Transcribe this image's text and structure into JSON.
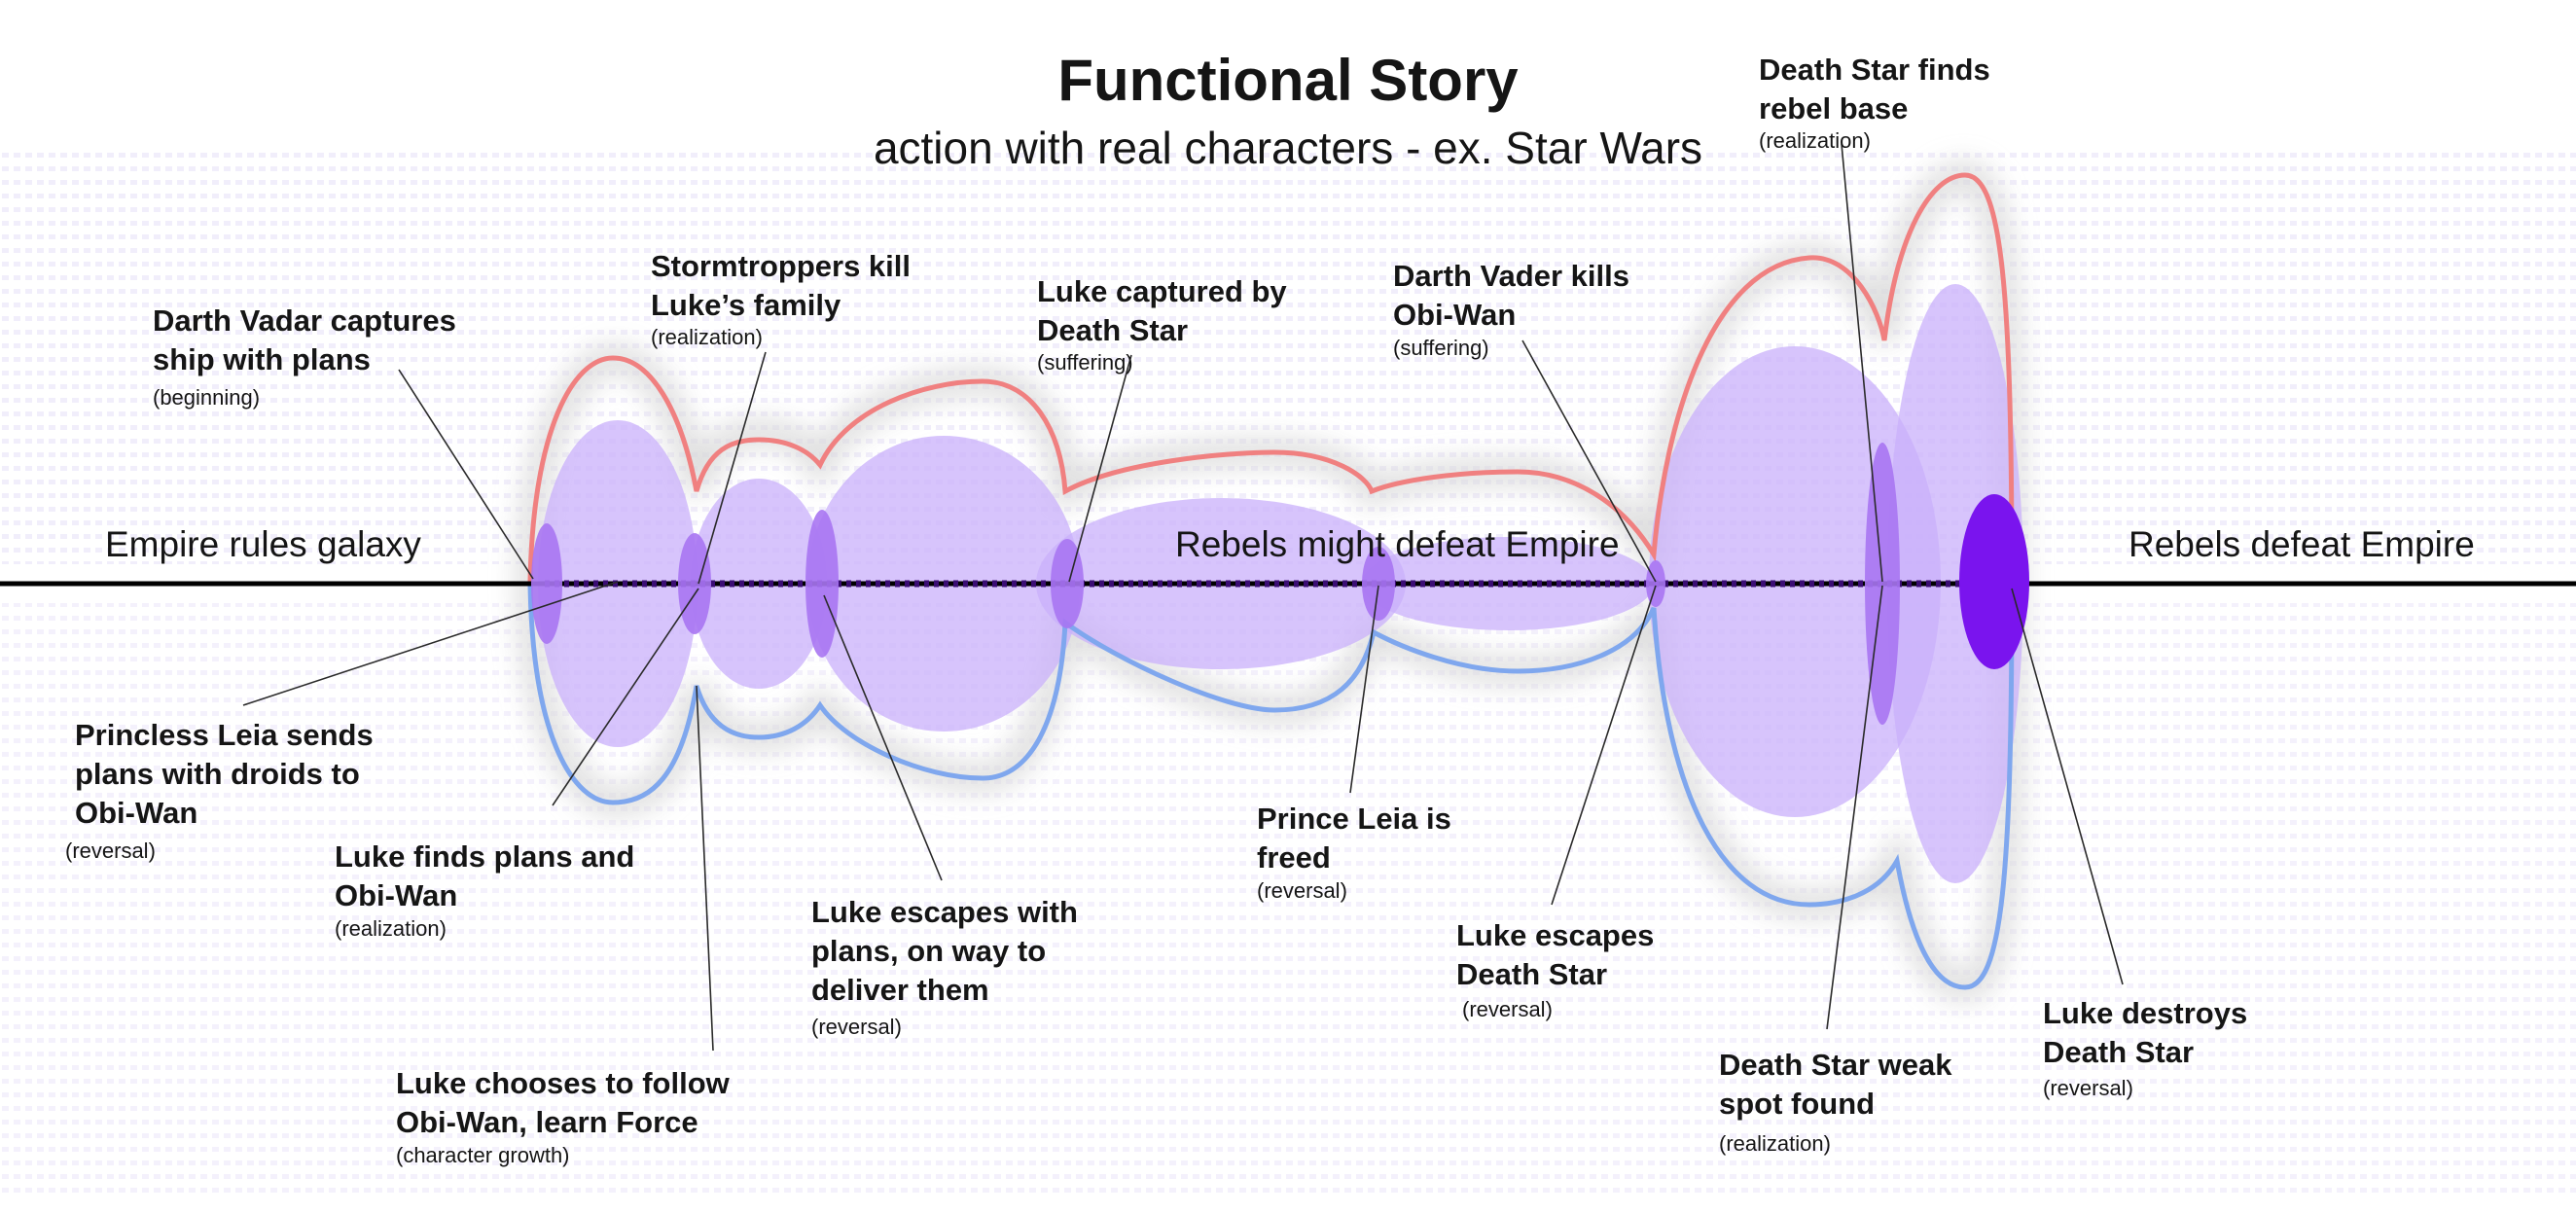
{
  "title": "Functional Story",
  "subtitle": "action with real characters - ex. Star Wars",
  "states": {
    "start": "Empire rules galaxy",
    "middle": "Rebels might defeat Empire",
    "end": "Rebels defeat Empire"
  },
  "colors": {
    "upper_curve": "#f08080",
    "lower_curve": "#7fa7ee",
    "bubble_fill": "#c9b0fb",
    "event_marker": "#a875f2",
    "final_marker": "#7a14ee",
    "spine": "#000000",
    "dotted_path": "#3a0d73"
  },
  "events": [
    {
      "id": "e1",
      "lines": [
        "Darth Vadar captures",
        "ship with plans"
      ],
      "tag": "(beginning)"
    },
    {
      "id": "e2",
      "lines": [
        "Princless Leia sends",
        "plans with droids to",
        "Obi-Wan"
      ],
      "tag": "(reversal)"
    },
    {
      "id": "e3",
      "lines": [
        "Stormtroppers kill",
        "Luke’s family"
      ],
      "tag": "(realization)"
    },
    {
      "id": "e4",
      "lines": [
        "Luke finds plans and",
        "Obi-Wan"
      ],
      "tag": "(realization)"
    },
    {
      "id": "e5",
      "lines": [
        "Luke chooses to follow",
        "Obi-Wan, learn Force"
      ],
      "tag": "(character growth)"
    },
    {
      "id": "e6",
      "lines": [
        "Luke escapes with",
        "plans, on way to",
        "deliver them"
      ],
      "tag": "(reversal)"
    },
    {
      "id": "e7",
      "lines": [
        "Luke captured by",
        "Death Star"
      ],
      "tag": "(suffering)"
    },
    {
      "id": "e8",
      "lines": [
        "Prince Leia is",
        "freed"
      ],
      "tag": "(reversal)"
    },
    {
      "id": "e9",
      "lines": [
        "Darth Vader kills",
        "Obi-Wan"
      ],
      "tag": "(suffering)"
    },
    {
      "id": "e10",
      "lines": [
        "Luke escapes",
        "Death Star"
      ],
      "tag": "(reversal)"
    },
    {
      "id": "e11",
      "lines": [
        "Death Star finds",
        "rebel base"
      ],
      "tag": "(realization)"
    },
    {
      "id": "e12",
      "lines": [
        "Death Star weak",
        "spot found"
      ],
      "tag": "(realization)"
    },
    {
      "id": "e13",
      "lines": [
        "Luke destroys",
        "Death Star"
      ],
      "tag": "(reversal)"
    }
  ]
}
